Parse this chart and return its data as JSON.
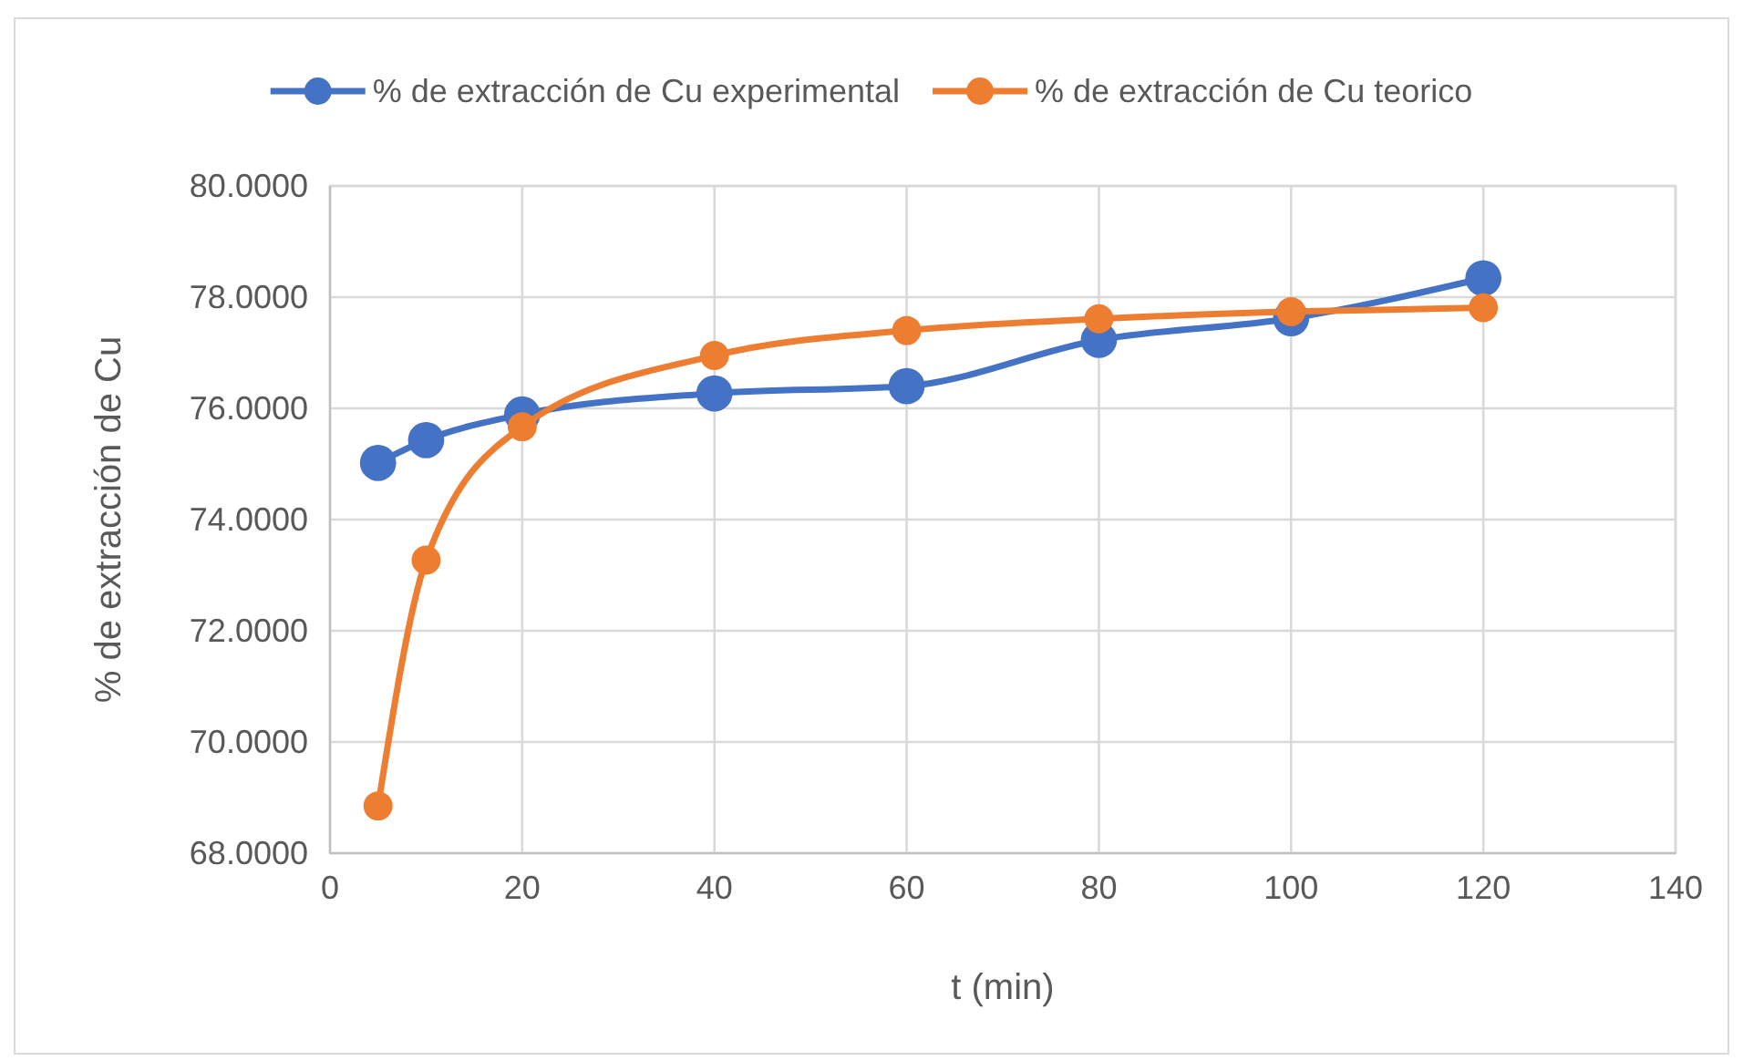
{
  "chart_data": {
    "type": "line",
    "xlabel": "t (min)",
    "ylabel": "% de extracción de Cu",
    "x": [
      5,
      10,
      20,
      40,
      60,
      80,
      100,
      120
    ],
    "series": [
      {
        "name": "% de extracción de Cu experimental",
        "color": "#4472c4",
        "values": [
          75.02,
          75.43,
          75.89,
          76.27,
          76.4,
          77.23,
          77.62,
          78.34
        ]
      },
      {
        "name": "% de extracción de Cu teorico",
        "color": "#ed7d31",
        "values": [
          68.85,
          73.27,
          75.67,
          76.95,
          77.4,
          77.61,
          77.74,
          77.81
        ]
      }
    ],
    "xlim": [
      0,
      140
    ],
    "xticks": [
      0,
      20,
      40,
      60,
      80,
      100,
      120,
      140
    ],
    "ylim": [
      68,
      80
    ],
    "yticks": [
      {
        "value": 68,
        "label": "68.0000"
      },
      {
        "value": 70,
        "label": "70.0000"
      },
      {
        "value": 72,
        "label": "72.0000"
      },
      {
        "value": 74,
        "label": "74.0000"
      },
      {
        "value": 76,
        "label": "76.0000"
      },
      {
        "value": 78,
        "label": "78.0000"
      },
      {
        "value": 80,
        "label": "80.0000"
      }
    ],
    "grid": true,
    "legend": "top",
    "marker": "circle",
    "line_style": "solid"
  }
}
